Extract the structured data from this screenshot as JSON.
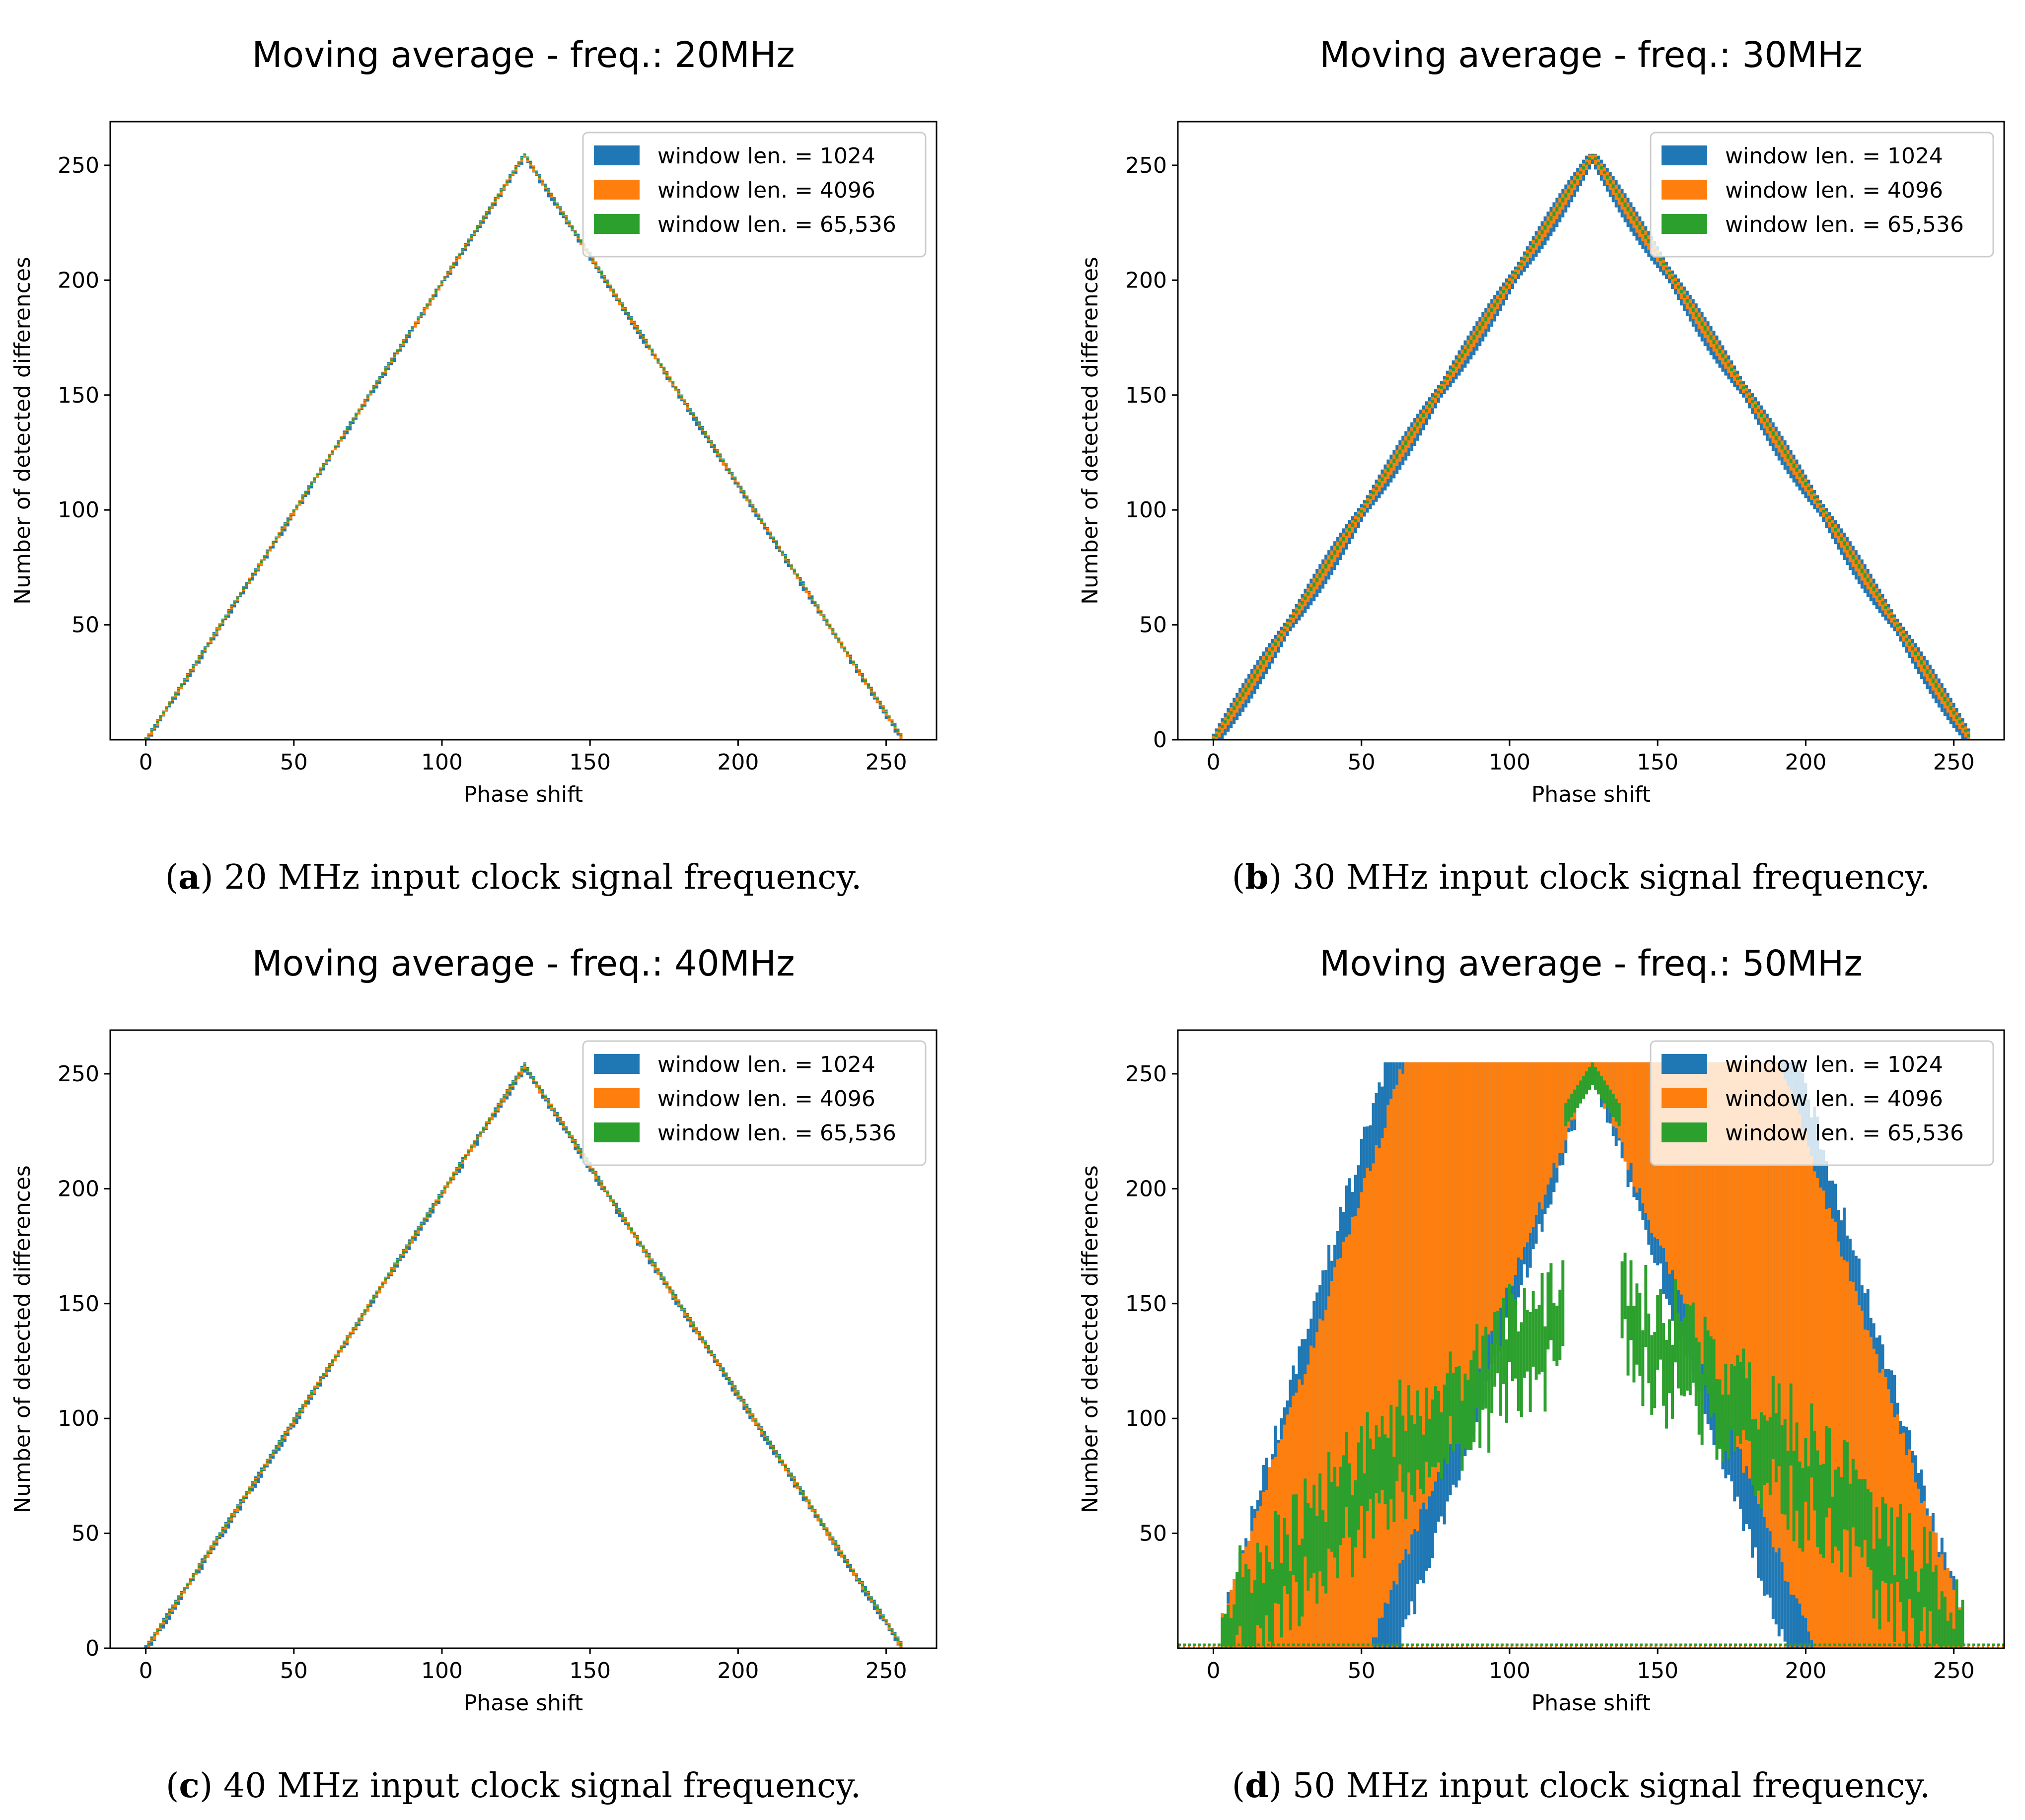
{
  "colors": {
    "series": [
      "#1f77b4",
      "#ff7f0e",
      "#2ca02c"
    ]
  },
  "chart_data": [
    {
      "type": "bar",
      "title": "Moving average - freq.: 20MHz",
      "xlabel": "Phase shift",
      "ylabel": "Number of detected differences",
      "xlim": [
        -12,
        267
      ],
      "ylim": [
        0,
        269
      ],
      "xticks": [
        0,
        50,
        100,
        150,
        200,
        250
      ],
      "yticks": [
        50,
        100,
        150,
        200,
        250
      ],
      "legend_position": "top-right",
      "series": [
        {
          "name": "window len. = 1024",
          "min_values": "x*2 for x<=128, (256-x)*2 after, minus 1.5",
          "spread": 1.5
        },
        {
          "name": "window len. = 4096",
          "spread": 1.0
        },
        {
          "name": "window len. = 65,536",
          "spread": 0.4
        }
      ],
      "peak": {
        "x": 128,
        "y": 255
      },
      "noise_band": 0,
      "caption_letter": "a",
      "caption_text": " 20 MHz input clock signal frequency."
    },
    {
      "type": "bar",
      "title": "Moving average - freq.: 30MHz",
      "xlabel": "Phase shift",
      "ylabel": "Number of detected differences",
      "xlim": [
        -12,
        267
      ],
      "ylim": [
        0,
        269
      ],
      "xticks": [
        0,
        50,
        100,
        150,
        200,
        250
      ],
      "yticks": [
        0,
        50,
        100,
        150,
        200,
        250
      ],
      "legend_position": "top-right",
      "series": [
        {
          "name": "window len. = 1024",
          "spread": 8
        },
        {
          "name": "window len. = 4096",
          "spread": 4.5
        },
        {
          "name": "window len. = 65,536",
          "spread": 1.2
        }
      ],
      "peak": {
        "x": 128,
        "y": 255
      },
      "noise_band": 0,
      "caption_letter": "b",
      "caption_text": " 30 MHz input clock signal frequency."
    },
    {
      "type": "bar",
      "title": "Moving average - freq.: 40MHz",
      "xlabel": "Phase shift",
      "ylabel": "Number of detected differences",
      "xlim": [
        -12,
        267
      ],
      "ylim": [
        0,
        269
      ],
      "xticks": [
        0,
        50,
        100,
        150,
        200,
        250
      ],
      "yticks": [
        0,
        50,
        100,
        150,
        200,
        250
      ],
      "legend_position": "top-right",
      "series": [
        {
          "name": "window len. = 1024",
          "spread": 1.8
        },
        {
          "name": "window len. = 4096",
          "spread": 1.2
        },
        {
          "name": "window len. = 65,536",
          "spread": 0.5
        }
      ],
      "peak": {
        "x": 128,
        "y": 254
      },
      "noise_band": 0,
      "caption_letter": "c",
      "caption_text": " 40 MHz input clock signal frequency."
    },
    {
      "type": "bar",
      "title": "Moving average - freq.: 50MHz",
      "xlabel": "Phase shift",
      "ylabel": "Number of detected differences",
      "xlim": [
        -12,
        267
      ],
      "ylim": [
        0,
        269
      ],
      "xticks": [
        0,
        50,
        100,
        150,
        200,
        250
      ],
      "yticks": [
        50,
        100,
        150,
        200,
        250
      ],
      "legend_position": "top-right",
      "series": [
        {
          "name": "window len. = 1024",
          "spread": 255
        },
        {
          "name": "window len. = 4096",
          "spread": 80
        },
        {
          "name": "window len. = 65,536",
          "spread": 20
        }
      ],
      "peak": {
        "x": 128,
        "y": 253
      },
      "noise_band": 1,
      "caption_letter": "d",
      "caption_text": " 50 MHz input clock signal frequency."
    }
  ]
}
